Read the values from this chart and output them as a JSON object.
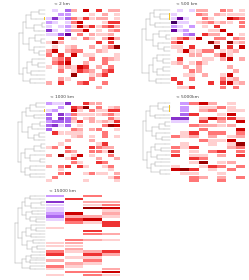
{
  "panels": [
    {
      "title": "< 2 km",
      "n_leaves": 20,
      "n_cols": 12,
      "row": 0,
      "col": 0,
      "idx": 0
    },
    {
      "title": "< 500 km",
      "n_leaves": 20,
      "n_cols": 12,
      "row": 0,
      "col": 1,
      "idx": 1
    },
    {
      "title": "< 1000 km",
      "n_leaves": 22,
      "n_cols": 12,
      "row": 1,
      "col": 0,
      "idx": 2
    },
    {
      "title": "< 5000km",
      "n_leaves": 22,
      "n_cols": 8,
      "row": 1,
      "col": 1,
      "idx": 3
    },
    {
      "title": "< 15000 km",
      "n_leaves": 28,
      "n_cols": 4,
      "row": 2,
      "col": 0,
      "idx": 4
    }
  ],
  "bg_color": "#ffffff",
  "tree_color": "#aaaaaa",
  "highlight_color": "#f0c020",
  "red_palette": [
    "#ffffff",
    "#ffd0d0",
    "#ffaaaa",
    "#ff7777",
    "#ee3333",
    "#cc0000",
    "#990000"
  ],
  "purple_palette": [
    "#ffffff",
    "#e8d0ff",
    "#cc99ff",
    "#aa66ee",
    "#8833cc",
    "#660099",
    "#440066"
  ]
}
